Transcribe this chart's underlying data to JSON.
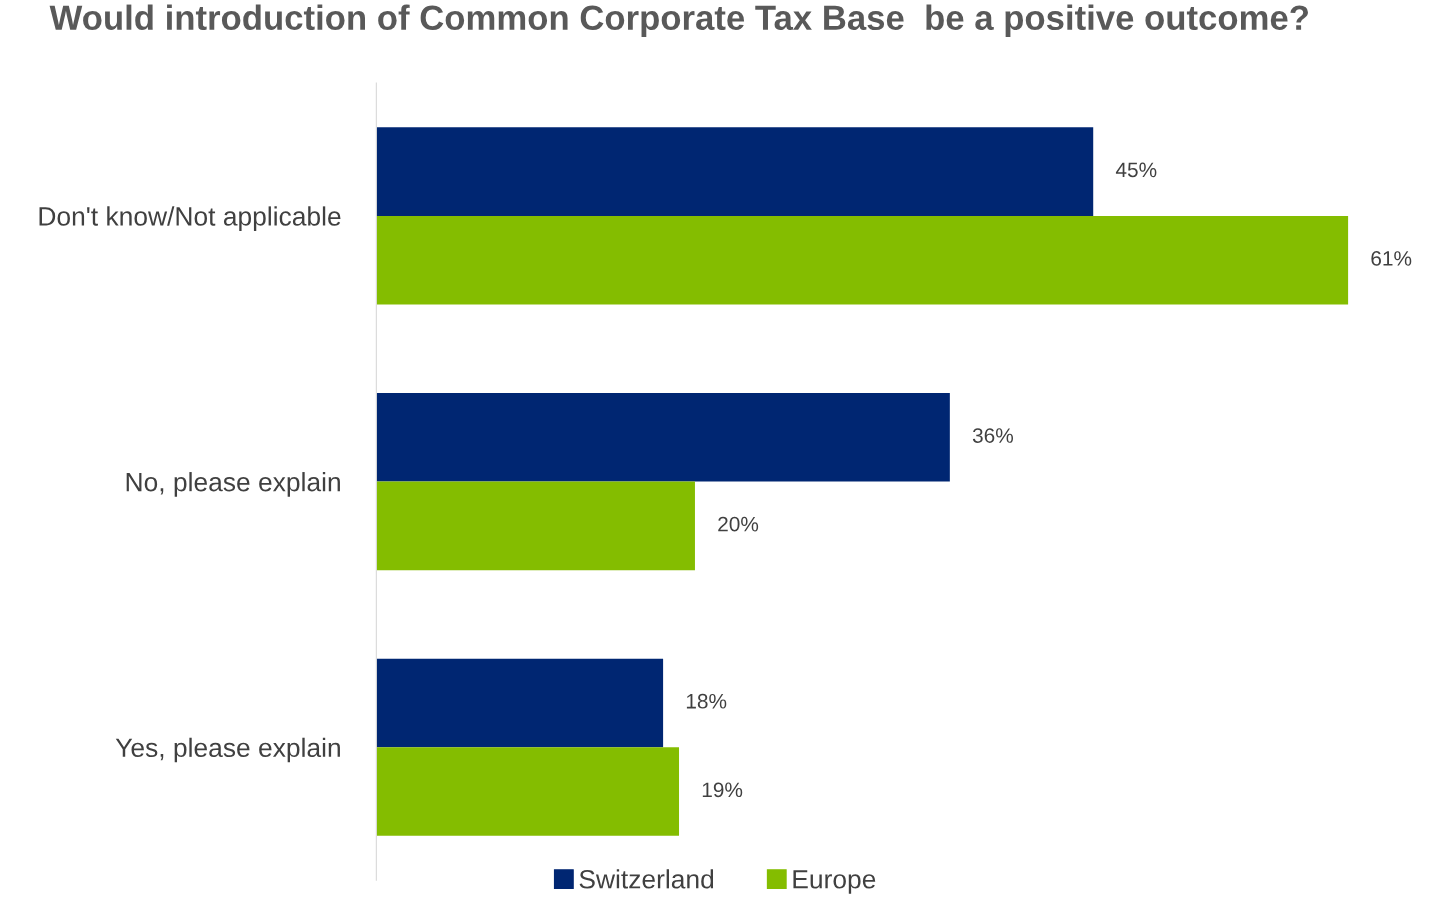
{
  "chart_data": {
    "type": "bar",
    "orientation": "horizontal",
    "title": "Would introduction of Common Corporate Tax Base  be a positive outcome?",
    "categories": [
      "Don't know/Not applicable",
      "No, please explain",
      "Yes, please explain"
    ],
    "series": [
      {
        "name": "Switzerland",
        "color": "#002672",
        "values": [
          45,
          36,
          18
        ],
        "value_labels": [
          "45%",
          "36%",
          "18%"
        ]
      },
      {
        "name": "Europe",
        "color": "#84bd00",
        "values": [
          61,
          20,
          19
        ],
        "value_labels": [
          "61%",
          "20%",
          "19%"
        ]
      }
    ],
    "tick_labels": "y",
    "grid": false,
    "legend": "bottom"
  }
}
